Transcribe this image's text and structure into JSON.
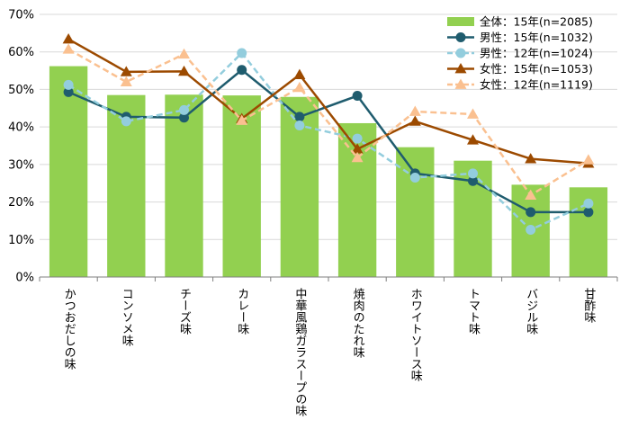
{
  "chart_data": {
    "type": "bar",
    "categories": [
      "かつおだしの味",
      "コンソメ味",
      "チーズ味",
      "カレー味",
      "中華風鶏ガラスープの味",
      "焼肉のたれ味",
      "ホワイトソース味",
      "トマト味",
      "バジル味",
      "甘酢味"
    ],
    "y_ticks": [
      "0%",
      "10%",
      "20%",
      "30%",
      "40%",
      "50%",
      "60%",
      "70%"
    ],
    "ylim": [
      0,
      70
    ],
    "grid": true,
    "legend_position": "top-right",
    "series": [
      {
        "name": "全体：15年(n=2085)",
        "kind": "bar",
        "color": "#92d050",
        "values": [
          56.2,
          48.5,
          48.6,
          48.4,
          48.0,
          41.0,
          34.6,
          31.0,
          24.6,
          23.9
        ]
      },
      {
        "name": "男性：15年(n=1032)",
        "kind": "line",
        "marker": "circle",
        "dashed": false,
        "color": "#1f5c6e",
        "values": [
          49.3,
          42.7,
          42.5,
          55.2,
          42.7,
          48.3,
          27.6,
          25.6,
          17.3,
          17.3
        ]
      },
      {
        "name": "男性：12年(n=1024)",
        "kind": "line",
        "marker": "circle",
        "dashed": true,
        "color": "#93cddd",
        "values": [
          51.2,
          41.5,
          44.5,
          59.7,
          40.4,
          36.9,
          26.5,
          27.6,
          12.6,
          19.6
        ]
      },
      {
        "name": "女性：15年(n=1053)",
        "kind": "line",
        "marker": "triangle",
        "dashed": false,
        "color": "#9c4a00",
        "values": [
          63.4,
          54.7,
          54.8,
          42.2,
          53.9,
          34.1,
          41.5,
          36.5,
          31.5,
          30.3
        ]
      },
      {
        "name": "女性：12年(n=1119)",
        "kind": "line",
        "marker": "triangle",
        "dashed": true,
        "color": "#fac090",
        "values": [
          60.7,
          52.0,
          59.4,
          41.7,
          50.5,
          31.8,
          44.1,
          43.4,
          21.8,
          31.2
        ]
      }
    ]
  }
}
